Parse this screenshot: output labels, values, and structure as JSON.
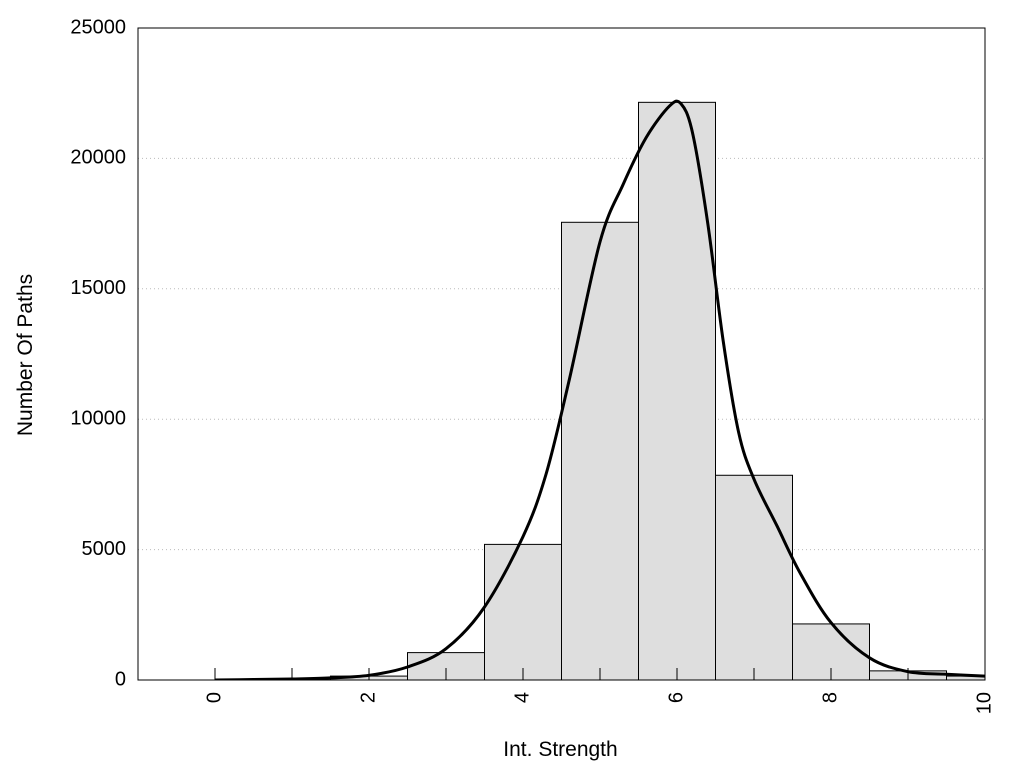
{
  "chart_data": {
    "type": "bar",
    "xlabel": "Int. Strength",
    "ylabel": "Number Of Paths",
    "xlim": [
      -1,
      10
    ],
    "ylim": [
      0,
      25000
    ],
    "x_ticks": [
      0,
      2,
      4,
      6,
      8,
      10
    ],
    "y_ticks": [
      0,
      5000,
      10000,
      15000,
      20000,
      25000
    ],
    "grid": "horizontal-dotted",
    "bar_color": "#dedede",
    "bars": {
      "x": [
        0,
        1,
        2,
        3,
        4,
        5,
        6,
        7,
        8,
        9,
        10
      ],
      "values": [
        0,
        50,
        150,
        1050,
        5200,
        17550,
        22150,
        7850,
        2150,
        350,
        150
      ]
    },
    "curve": {
      "x": [
        0,
        0.5,
        1,
        1.5,
        2,
        2.5,
        3,
        3.5,
        4,
        4.3,
        4.6,
        5,
        5.3,
        5.6,
        5.9,
        6.05,
        6.2,
        6.4,
        6.6,
        6.8,
        7,
        7.3,
        7.6,
        8,
        8.5,
        9,
        9.5,
        10
      ],
      "values": [
        0,
        20,
        40,
        80,
        180,
        500,
        1200,
        2800,
        5500,
        7900,
        11500,
        16800,
        19000,
        20800,
        22000,
        22100,
        21000,
        17500,
        13000,
        9500,
        7700,
        5900,
        4100,
        2200,
        850,
        320,
        220,
        150
      ]
    }
  }
}
